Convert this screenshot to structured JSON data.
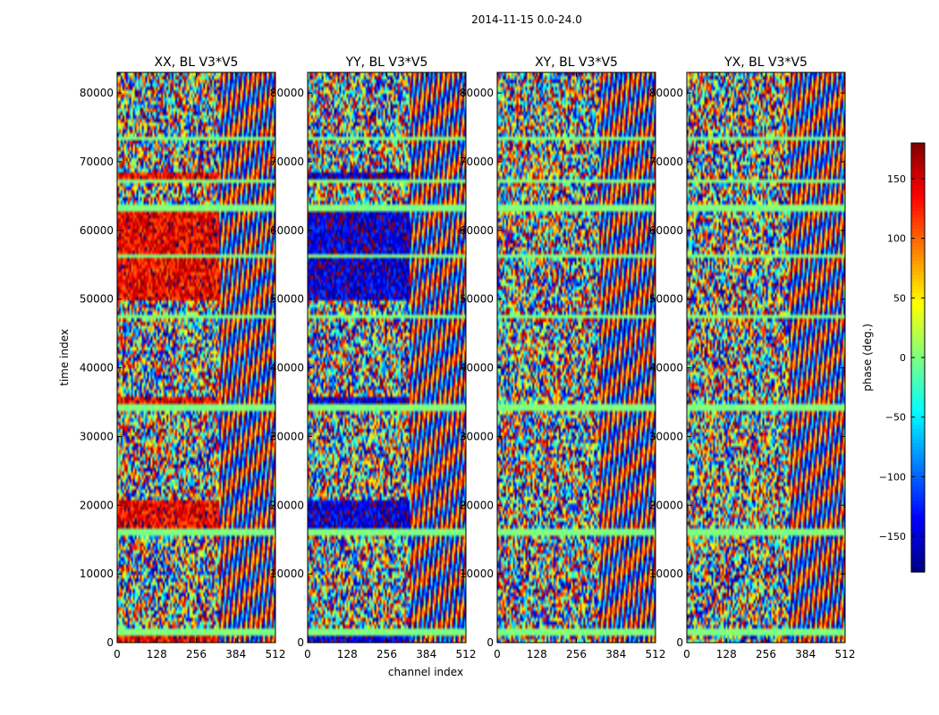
{
  "chart_data": {
    "type": "heatmap",
    "suptitle": "2014-11-15 0.0-24.0",
    "xlabel": "channel index",
    "ylabel": "time index",
    "xlim": [
      0,
      512
    ],
    "ylim": [
      0,
      83000
    ],
    "xticks": [
      0,
      128,
      256,
      384,
      512
    ],
    "yticks": [
      0,
      10000,
      20000,
      30000,
      40000,
      50000,
      60000,
      70000,
      80000
    ],
    "panels": [
      {
        "title": "XX, BL V3*V5",
        "bias_phase": 140,
        "bias_bands": [
          [
            0,
            2300
          ],
          [
            16500,
            21000
          ],
          [
            34300,
            36000
          ],
          [
            50000,
            63000
          ],
          [
            67500,
            68500
          ]
        ]
      },
      {
        "title": "YY, BL V3*V5",
        "bias_phase": -150,
        "bias_bands": [
          [
            0,
            2300
          ],
          [
            16500,
            21000
          ],
          [
            34300,
            36000
          ],
          [
            50000,
            63000
          ],
          [
            67500,
            68500
          ]
        ]
      },
      {
        "title": "XY, BL V3*V5",
        "bias_phase": 0,
        "bias_bands": []
      },
      {
        "title": "YX, BL V3*V5",
        "bias_phase": 0,
        "bias_bands": []
      }
    ],
    "flagged_time_ranges": [
      [
        1000,
        2000
      ],
      [
        15500,
        16500
      ],
      [
        33800,
        34500
      ],
      [
        47000,
        47800
      ],
      [
        56000,
        56800
      ],
      [
        63000,
        63800
      ],
      [
        67000,
        67600
      ],
      [
        73000,
        73600
      ]
    ],
    "colorbar": {
      "label": "phase (deg.)",
      "range": [
        -180,
        180
      ],
      "ticks": [
        150,
        100,
        50,
        0,
        -50,
        -100,
        -150
      ],
      "colormap": "jet"
    }
  }
}
